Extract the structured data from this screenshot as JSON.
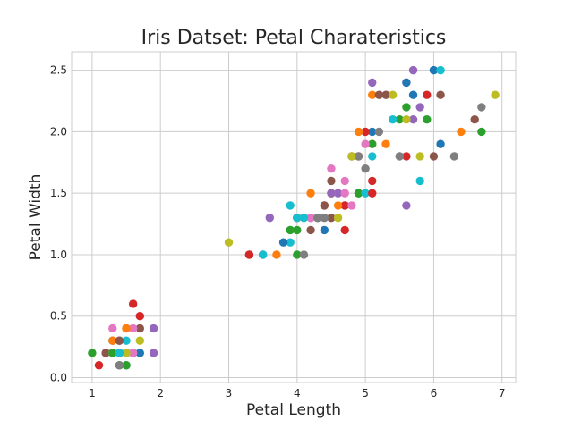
{
  "chart_data": {
    "type": "scatter",
    "title": "Iris Datset: Petal Charateristics",
    "xlabel": "Petal Length",
    "ylabel": "Petal Width",
    "xlim": [
      0.7,
      7.2
    ],
    "ylim": [
      -0.04,
      2.65
    ],
    "xticks": [
      1,
      2,
      3,
      4,
      5,
      6,
      7
    ],
    "yticks": [
      0.0,
      0.5,
      1.0,
      1.5,
      2.0,
      2.5
    ],
    "xtick_labels": [
      "1",
      "2",
      "3",
      "4",
      "5",
      "6",
      "7"
    ],
    "ytick_labels": [
      "0.0",
      "0.5",
      "1.0",
      "1.5",
      "2.0",
      "2.5"
    ],
    "grid": true,
    "palette": [
      "#1f77b4",
      "#ff7f0e",
      "#2ca02c",
      "#d62728",
      "#9467bd",
      "#8c564b",
      "#e377c2",
      "#7f7f7f",
      "#bcbd22",
      "#17becf"
    ],
    "points": [
      [
        1.4,
        0.2
      ],
      [
        1.4,
        0.2
      ],
      [
        1.3,
        0.2
      ],
      [
        1.5,
        0.2
      ],
      [
        1.4,
        0.2
      ],
      [
        1.7,
        0.4
      ],
      [
        1.4,
        0.3
      ],
      [
        1.5,
        0.2
      ],
      [
        1.4,
        0.2
      ],
      [
        1.5,
        0.1
      ],
      [
        1.5,
        0.2
      ],
      [
        1.6,
        0.2
      ],
      [
        1.4,
        0.1
      ],
      [
        1.1,
        0.1
      ],
      [
        1.2,
        0.2
      ],
      [
        1.5,
        0.4
      ],
      [
        1.3,
        0.4
      ],
      [
        1.4,
        0.3
      ],
      [
        1.7,
        0.3
      ],
      [
        1.5,
        0.3
      ],
      [
        1.7,
        0.2
      ],
      [
        1.5,
        0.4
      ],
      [
        1.0,
        0.2
      ],
      [
        1.7,
        0.5
      ],
      [
        1.9,
        0.2
      ],
      [
        1.6,
        0.2
      ],
      [
        1.6,
        0.4
      ],
      [
        1.5,
        0.2
      ],
      [
        1.4,
        0.2
      ],
      [
        1.6,
        0.2
      ],
      [
        1.6,
        0.2
      ],
      [
        1.5,
        0.4
      ],
      [
        1.5,
        0.1
      ],
      [
        1.4,
        0.2
      ],
      [
        1.5,
        0.2
      ],
      [
        1.2,
        0.2
      ],
      [
        1.3,
        0.2
      ],
      [
        1.4,
        0.1
      ],
      [
        1.3,
        0.2
      ],
      [
        1.5,
        0.2
      ],
      [
        1.3,
        0.3
      ],
      [
        1.3,
        0.3
      ],
      [
        1.3,
        0.2
      ],
      [
        1.6,
        0.6
      ],
      [
        1.9,
        0.4
      ],
      [
        1.4,
        0.3
      ],
      [
        1.6,
        0.2
      ],
      [
        1.4,
        0.2
      ],
      [
        1.5,
        0.2
      ],
      [
        1.4,
        0.2
      ],
      [
        4.7,
        1.4
      ],
      [
        4.5,
        1.5
      ],
      [
        4.9,
        1.5
      ],
      [
        4.0,
        1.3
      ],
      [
        4.6,
        1.5
      ],
      [
        4.5,
        1.3
      ],
      [
        4.7,
        1.6
      ],
      [
        3.3,
        1.0
      ],
      [
        4.6,
        1.3
      ],
      [
        3.9,
        1.4
      ],
      [
        3.5,
        1.0
      ],
      [
        4.2,
        1.5
      ],
      [
        4.0,
        1.0
      ],
      [
        4.7,
        1.4
      ],
      [
        3.6,
        1.3
      ],
      [
        4.4,
        1.4
      ],
      [
        4.5,
        1.5
      ],
      [
        4.1,
        1.0
      ],
      [
        4.5,
        1.5
      ],
      [
        3.9,
        1.1
      ],
      [
        4.8,
        1.8
      ],
      [
        4.0,
        1.3
      ],
      [
        4.9,
        1.5
      ],
      [
        4.7,
        1.2
      ],
      [
        4.3,
        1.3
      ],
      [
        4.4,
        1.4
      ],
      [
        4.8,
        1.4
      ],
      [
        5.0,
        1.7
      ],
      [
        4.5,
        1.5
      ],
      [
        3.5,
        1.0
      ],
      [
        3.8,
        1.1
      ],
      [
        3.7,
        1.0
      ],
      [
        3.9,
        1.2
      ],
      [
        5.1,
        1.6
      ],
      [
        4.5,
        1.5
      ],
      [
        4.5,
        1.6
      ],
      [
        4.7,
        1.5
      ],
      [
        4.4,
        1.3
      ],
      [
        4.1,
        1.3
      ],
      [
        4.0,
        1.3
      ],
      [
        4.4,
        1.2
      ],
      [
        4.6,
        1.4
      ],
      [
        4.0,
        1.2
      ],
      [
        3.3,
        1.0
      ],
      [
        4.2,
        1.3
      ],
      [
        4.2,
        1.2
      ],
      [
        4.2,
        1.3
      ],
      [
        4.3,
        1.3
      ],
      [
        3.0,
        1.1
      ],
      [
        4.1,
        1.3
      ],
      [
        6.0,
        2.5
      ],
      [
        5.1,
        1.9
      ],
      [
        5.9,
        2.1
      ],
      [
        5.6,
        1.8
      ],
      [
        5.8,
        2.2
      ],
      [
        6.6,
        2.1
      ],
      [
        4.5,
        1.7
      ],
      [
        6.3,
        1.8
      ],
      [
        5.8,
        1.8
      ],
      [
        6.1,
        2.5
      ],
      [
        5.1,
        2.0
      ],
      [
        5.3,
        1.9
      ],
      [
        5.5,
        2.1
      ],
      [
        5.0,
        2.0
      ],
      [
        5.1,
        2.4
      ],
      [
        5.3,
        2.3
      ],
      [
        5.5,
        1.8
      ],
      [
        6.7,
        2.2
      ],
      [
        6.9,
        2.3
      ],
      [
        5.0,
        1.5
      ],
      [
        5.7,
        2.3
      ],
      [
        4.9,
        2.0
      ],
      [
        6.7,
        2.0
      ],
      [
        4.9,
        1.8
      ],
      [
        5.7,
        2.1
      ],
      [
        6.0,
        1.8
      ],
      [
        4.8,
        1.8
      ],
      [
        4.9,
        1.8
      ],
      [
        5.6,
        2.1
      ],
      [
        5.8,
        1.6
      ],
      [
        6.1,
        1.9
      ],
      [
        6.4,
        2.0
      ],
      [
        5.6,
        2.2
      ],
      [
        5.1,
        1.5
      ],
      [
        5.6,
        1.4
      ],
      [
        6.1,
        2.3
      ],
      [
        5.6,
        2.4
      ],
      [
        5.5,
        1.8
      ],
      [
        4.8,
        1.8
      ],
      [
        5.4,
        2.1
      ],
      [
        5.6,
        2.4
      ],
      [
        5.1,
        2.3
      ],
      [
        5.1,
        1.9
      ],
      [
        5.9,
        2.3
      ],
      [
        5.7,
        2.5
      ],
      [
        5.2,
        2.3
      ],
      [
        5.0,
        1.9
      ],
      [
        5.2,
        2.0
      ],
      [
        5.4,
        2.3
      ],
      [
        5.1,
        1.8
      ]
    ]
  }
}
